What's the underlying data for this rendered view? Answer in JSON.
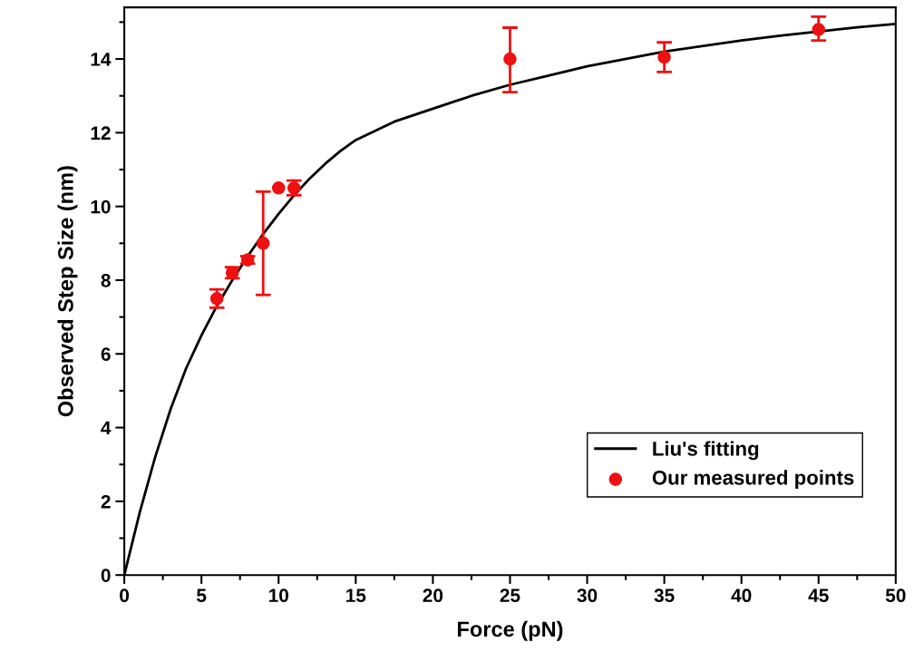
{
  "chart_data": {
    "type": "scatter",
    "xlabel": "Force (pN)",
    "ylabel": "Observed Step Size (nm)",
    "xlim": [
      0,
      50
    ],
    "ylim": [
      0,
      15.4
    ],
    "xticks": [
      0,
      5,
      10,
      15,
      20,
      25,
      30,
      35,
      40,
      45,
      50
    ],
    "yticks": [
      0,
      2,
      4,
      6,
      8,
      10,
      12,
      14
    ],
    "legend": "bottom right",
    "grid": false,
    "series": [
      {
        "name": "Liu's fitting",
        "type": "line",
        "color": "#000000",
        "marker": "none",
        "line_style": "solid",
        "x": [
          0,
          1,
          2,
          3,
          4,
          5,
          6,
          7,
          8,
          9,
          10,
          11,
          12,
          13,
          14,
          15,
          17.5,
          20,
          22.5,
          25,
          27.5,
          30,
          35,
          40,
          42.5,
          47.5,
          50
        ],
        "values": [
          0,
          1.7,
          3.2,
          4.5,
          5.6,
          6.5,
          7.3,
          8.0,
          8.65,
          9.25,
          9.8,
          10.3,
          10.75,
          11.15,
          11.5,
          11.8,
          12.3,
          12.65,
          13.0,
          13.3,
          13.55,
          13.8,
          14.2,
          14.5,
          14.63,
          14.86,
          14.95
        ]
      },
      {
        "name": "Our measured points",
        "color": "#ee1111",
        "marker": "circle",
        "x": [
          6,
          7,
          8,
          9,
          10,
          11,
          25,
          35,
          45
        ],
        "values": [
          7.5,
          8.2,
          8.55,
          9.0,
          10.5,
          10.5,
          14.0,
          14.05,
          14.8
        ],
        "errors": [
          [
            7.25,
            7.75
          ],
          [
            8.05,
            8.35
          ],
          [
            8.45,
            8.65
          ],
          [
            7.6,
            10.4
          ],
          null,
          [
            10.3,
            10.7
          ],
          [
            13.1,
            14.85
          ],
          [
            13.65,
            14.45
          ],
          [
            14.5,
            15.15
          ]
        ]
      }
    ]
  }
}
